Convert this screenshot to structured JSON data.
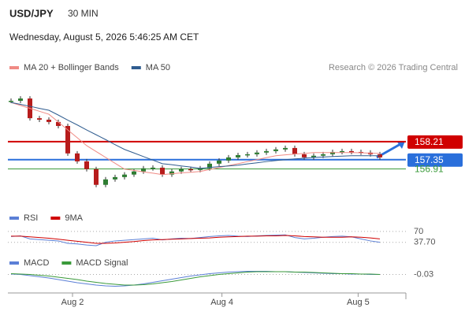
{
  "header": {
    "symbol": "USD/JPY",
    "interval": "30 MIN",
    "datetime": "Wednesday, August 5, 2026 5:46:25 AM CET",
    "credit": "Research © 2026 Trading Central"
  },
  "xticks": [
    {
      "value": 6.5,
      "label": "Aug 2"
    },
    {
      "value": 22.3,
      "label": "Aug 4"
    },
    {
      "value": 36.7,
      "label": "Aug 5"
    }
  ],
  "chart_data": [
    {
      "type": "candlestick",
      "ylim": [
        155.2,
        160.8
      ],
      "close": [
        160.16,
        160.27,
        159.33,
        159.26,
        159.15,
        158.96,
        157.65,
        157.27,
        156.9,
        156.15,
        156.41,
        156.52,
        156.64,
        156.79,
        156.94,
        156.97,
        156.64,
        156.79,
        156.9,
        156.86,
        156.94,
        157.16,
        157.31,
        157.46,
        157.57,
        157.61,
        157.69,
        157.76,
        157.84,
        157.91,
        157.61,
        157.46,
        157.54,
        157.61,
        157.72,
        157.76,
        157.72,
        157.69,
        157.61,
        157.46
      ],
      "series": [
        {
          "name": "MA 20 + Bollinger Bands",
          "color": "#f08a84",
          "values": [
            160.08,
            159.94,
            159.8,
            159.66,
            159.52,
            159.15,
            158.77,
            158.4,
            158.02,
            157.74,
            157.46,
            157.18,
            156.9,
            156.84,
            156.77,
            156.71,
            156.64,
            156.68,
            156.72,
            156.75,
            156.79,
            156.88,
            156.97,
            157.07,
            157.16,
            157.26,
            157.35,
            157.45,
            157.54,
            157.58,
            157.62,
            157.65,
            157.69,
            157.69,
            157.69,
            157.69,
            157.69,
            157.68,
            157.66,
            157.65
          ]
        },
        {
          "name": "MA 50",
          "color": "#2f5c8f",
          "values": [
            160.08,
            159.99,
            159.9,
            159.8,
            159.71,
            159.48,
            159.24,
            159.01,
            158.77,
            158.54,
            158.31,
            158.07,
            157.84,
            157.67,
            157.5,
            157.33,
            157.16,
            157.11,
            157.05,
            157.0,
            156.94,
            156.98,
            157.02,
            157.05,
            157.09,
            157.15,
            157.2,
            157.26,
            157.31,
            157.35,
            157.39,
            157.42,
            157.46,
            157.48,
            157.5,
            157.52,
            157.54,
            157.54,
            157.54,
            157.54
          ]
        }
      ],
      "levels": [
        {
          "value": 158.21,
          "color": "#d00000",
          "box": true
        },
        {
          "value": 157.35,
          "color": "#2a6fdb",
          "box": true
        },
        {
          "value": 156.91,
          "color": "#3a9a3a",
          "box": false
        }
      ]
    },
    {
      "type": "line",
      "ylim": [
        0,
        100
      ],
      "series": [
        {
          "name": "RSI",
          "color": "#5b7fd6",
          "values": [
            55,
            57,
            48,
            46,
            44,
            42,
            35,
            33,
            30,
            28,
            38,
            42,
            44,
            46,
            48,
            50,
            45,
            48,
            50,
            49,
            52,
            55,
            57,
            58,
            56,
            55,
            57,
            58,
            59,
            60,
            52,
            48,
            50,
            53,
            55,
            56,
            54,
            48,
            42,
            38
          ]
        },
        {
          "name": "9MA",
          "color": "#d00000",
          "values": [
            56,
            56,
            54,
            52,
            50,
            47,
            44,
            41,
            38,
            35,
            35,
            36,
            38,
            40,
            43,
            45,
            46,
            47,
            48,
            49,
            50,
            51,
            53,
            54,
            55,
            56,
            56,
            57,
            57,
            58,
            57,
            55,
            54,
            53,
            53,
            53,
            54,
            53,
            51,
            48
          ]
        }
      ],
      "levels": [
        {
          "value": 70
        },
        {
          "value": 37.7,
          "label": "37.70"
        }
      ]
    },
    {
      "type": "line",
      "ylim": [
        -0.5,
        0.3
      ],
      "series": [
        {
          "name": "MACD",
          "color": "#5b7fd6",
          "values": [
            -0.02,
            -0.03,
            -0.06,
            -0.09,
            -0.12,
            -0.16,
            -0.2,
            -0.24,
            -0.27,
            -0.3,
            -0.32,
            -0.33,
            -0.32,
            -0.3,
            -0.27,
            -0.23,
            -0.19,
            -0.15,
            -0.11,
            -0.07,
            -0.04,
            -0.01,
            0.01,
            0.03,
            0.04,
            0.05,
            0.05,
            0.05,
            0.04,
            0.04,
            0.03,
            0.02,
            0.01,
            0.0,
            -0.01,
            -0.01,
            -0.02,
            -0.02,
            -0.03,
            -0.03
          ]
        },
        {
          "name": "MACD Signal",
          "color": "#3a9a3a",
          "values": [
            -0.01,
            -0.02,
            -0.03,
            -0.05,
            -0.07,
            -0.1,
            -0.13,
            -0.16,
            -0.2,
            -0.23,
            -0.26,
            -0.28,
            -0.3,
            -0.3,
            -0.29,
            -0.27,
            -0.24,
            -0.21,
            -0.17,
            -0.13,
            -0.09,
            -0.06,
            -0.03,
            -0.01,
            0.01,
            0.03,
            0.04,
            0.04,
            0.04,
            0.04,
            0.03,
            0.03,
            0.02,
            0.01,
            0.0,
            -0.01,
            -0.01,
            -0.02,
            -0.02,
            -0.03
          ]
        }
      ],
      "levels": [
        {
          "value": -0.03
        }
      ]
    }
  ]
}
